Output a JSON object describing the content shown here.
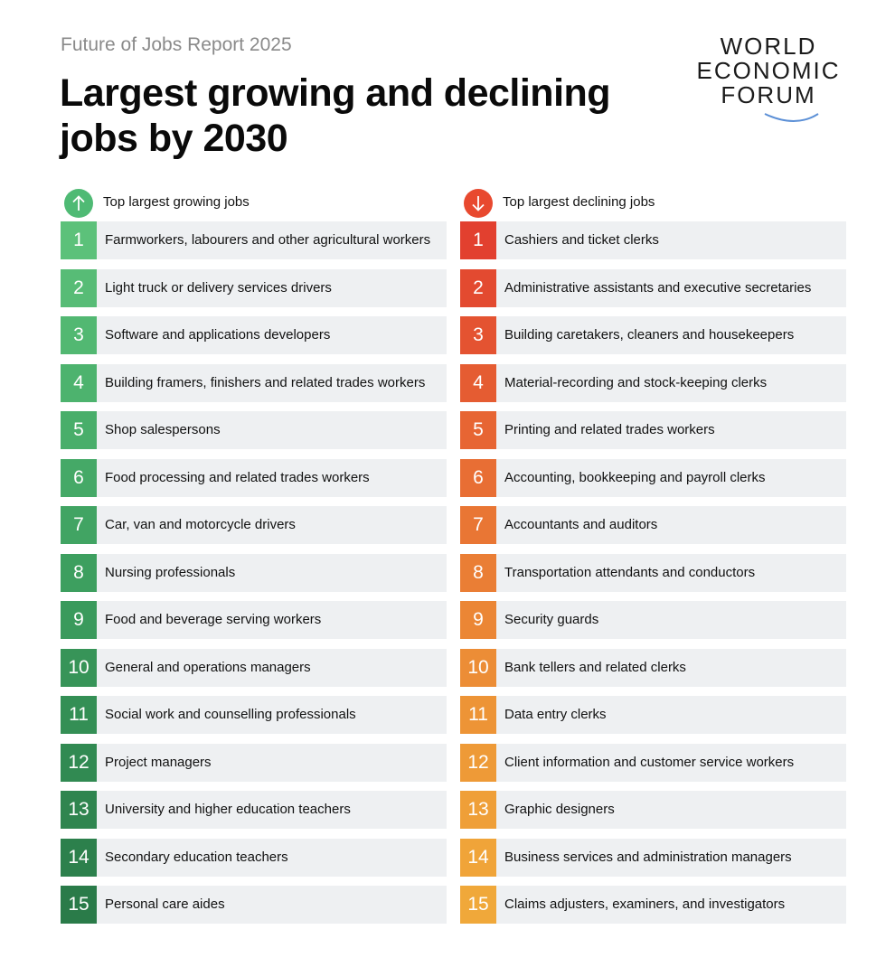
{
  "header": {
    "subtitle": "Future of Jobs Report 2025",
    "title": "Largest growing and declining jobs by 2030"
  },
  "logo": {
    "lines": [
      "WORLD",
      "ECONOMIC",
      "FORUM"
    ],
    "arc_color": "#5b8fd6"
  },
  "chart_data": {
    "type": "table",
    "title": "Largest growing and declining jobs by 2030",
    "subtitle": "Future of Jobs Report 2025",
    "columns": [
      {
        "heading": "Top largest growing jobs",
        "icon": "arrow-up-icon",
        "icon_color": "#4fba74",
        "ranks": [
          "1",
          "2",
          "3",
          "4",
          "5",
          "6",
          "7",
          "8",
          "9",
          "10",
          "11",
          "12",
          "13",
          "14",
          "15"
        ],
        "colors": [
          "#5cc17a",
          "#57bc76",
          "#52b872",
          "#4db36e",
          "#49ae6a",
          "#45a967",
          "#41a463",
          "#3d9f5f",
          "#3a9a5c",
          "#379458",
          "#348f55",
          "#318a52",
          "#2f854f",
          "#2c804c",
          "#2a7b49"
        ],
        "jobs": [
          "Farmworkers, labourers and other agricultural workers",
          "Light truck or delivery services drivers",
          "Software and applications developers",
          "Building framers, finishers and related trades workers",
          "Shop salespersons",
          "Food processing and related trades workers",
          "Car, van and motorcycle drivers",
          "Nursing professionals",
          "Food and beverage serving workers",
          "General and operations managers",
          "Social work and counselling professionals",
          "Project managers",
          "University and higher education teachers",
          "Secondary education teachers",
          "Personal care aides"
        ]
      },
      {
        "heading": "Top largest declining jobs",
        "icon": "arrow-down-icon",
        "icon_color": "#e8492f",
        "ranks": [
          "1",
          "2",
          "3",
          "4",
          "5",
          "6",
          "7",
          "8",
          "9",
          "10",
          "11",
          "12",
          "13",
          "14",
          "15"
        ],
        "colors": [
          "#e2402f",
          "#e34a30",
          "#e45331",
          "#e55c32",
          "#e76533",
          "#e86e34",
          "#e97634",
          "#ea7e35",
          "#eb8635",
          "#ec8d36",
          "#ed9436",
          "#ee9a37",
          "#ef9f38",
          "#f0a439",
          "#f0a83a"
        ],
        "jobs": [
          "Cashiers and ticket clerks",
          "Administrative assistants and executive secretaries",
          "Building caretakers, cleaners and housekeepers",
          "Material-recording and stock-keeping clerks",
          "Printing and related trades workers",
          "Accounting, bookkeeping and payroll clerks",
          "Accountants and auditors",
          "Transportation attendants and conductors",
          "Security guards",
          "Bank tellers and related clerks",
          "Data entry clerks",
          "Client information and customer service workers",
          "Graphic designers",
          "Business services and administration managers",
          "Claims adjusters, examiners, and investigators"
        ]
      }
    ]
  }
}
